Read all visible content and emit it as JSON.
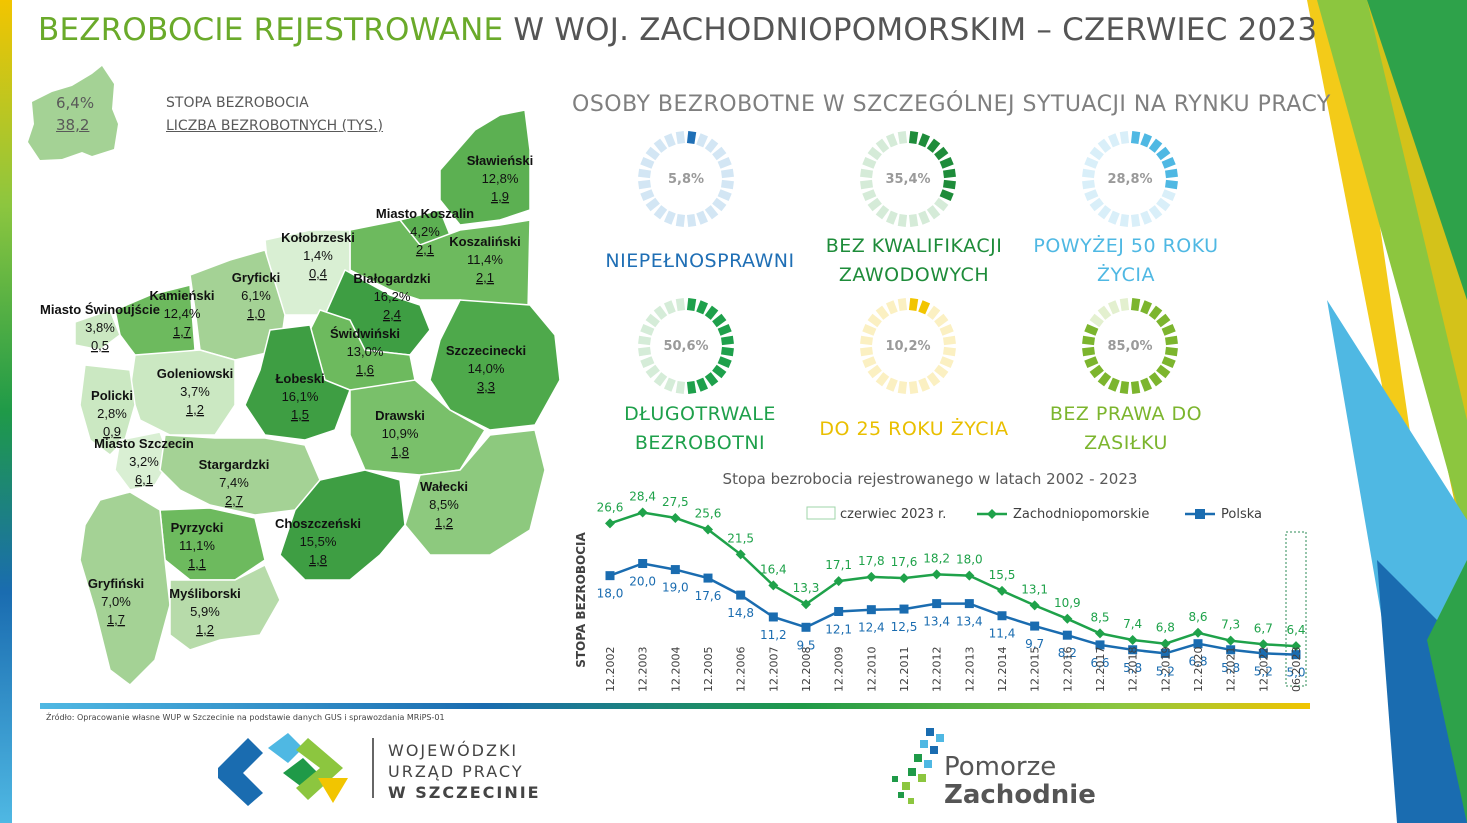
{
  "title": {
    "part1": "BEZROBOCIE REJESTROWANE",
    "part2": "W WOJ. ZACHODNIOPOMORSKIM – CZERWIEC 2023"
  },
  "legend": {
    "rate_value": "6,4%",
    "count_value": "38,2",
    "rate_label": "STOPA BEZROBOCIA",
    "count_label": "LICZBA BEZROBOTNYCH (TYS.)"
  },
  "map": {
    "counties": [
      {
        "name": "Sławieński",
        "rate": "12,8%",
        "count": "1,9",
        "shade": "#5cb052"
      },
      {
        "name": "Miasto Koszalin",
        "rate": "4,2%",
        "count": "2,1",
        "shade": "#5cb052"
      },
      {
        "name": "Koszaliński",
        "rate": "11,4%",
        "count": "2,1",
        "shade": "#6dba5e"
      },
      {
        "name": "Kołobrzeski",
        "rate": "1,4%",
        "count": "0,4",
        "shade": "#d9efd3"
      },
      {
        "name": "Gryficki",
        "rate": "6,1%",
        "count": "1,0",
        "shade": "#a4d295"
      },
      {
        "name": "Białogardzki",
        "rate": "16,2%",
        "count": "2,4",
        "shade": "#3e9e43"
      },
      {
        "name": "Kamieński",
        "rate": "12,4%",
        "count": "1,7",
        "shade": "#6dba5e"
      },
      {
        "name": "Miasto Świnoujście",
        "rate": "3,8%",
        "count": "0,5",
        "shade": "#cbe8c2"
      },
      {
        "name": "Świdwiński",
        "rate": "13,0%",
        "count": "1,6",
        "shade": "#6dba5e"
      },
      {
        "name": "Szczecinecki",
        "rate": "14,0%",
        "count": "3,3",
        "shade": "#4ea94b"
      },
      {
        "name": "Goleniowski",
        "rate": "3,7%",
        "count": "1,2",
        "shade": "#cbe8c2"
      },
      {
        "name": "Łobeski",
        "rate": "16,1%",
        "count": "1,5",
        "shade": "#3e9e43"
      },
      {
        "name": "Policki",
        "rate": "2,8%",
        "count": "0,9",
        "shade": "#cbe8c2"
      },
      {
        "name": "Miasto Szczecin",
        "rate": "3,2%",
        "count": "6,1",
        "shade": "#d9efd3"
      },
      {
        "name": "Drawski",
        "rate": "10,9%",
        "count": "1,8",
        "shade": "#79c06a"
      },
      {
        "name": "Stargardzki",
        "rate": "7,4%",
        "count": "2,7",
        "shade": "#a4d295"
      },
      {
        "name": "Wałecki",
        "rate": "8,5%",
        "count": "1,2",
        "shade": "#8dc97e"
      },
      {
        "name": "Choszczeński",
        "rate": "15,5%",
        "count": "1,8",
        "shade": "#3e9e43"
      },
      {
        "name": "Pyrzycki",
        "rate": "11,1%",
        "count": "1,1",
        "shade": "#6dba5e"
      },
      {
        "name": "Gryfiński",
        "rate": "7,0%",
        "count": "1,7",
        "shade": "#a4d295"
      },
      {
        "name": "Myśliborski",
        "rate": "5,9%",
        "count": "1,2",
        "shade": "#b7dbaa"
      }
    ]
  },
  "special": {
    "title": "OSOBY BEZROBOTNE W SZCZEGÓLNEJ SYTUACJI NA RYNKU PRACY",
    "items": [
      {
        "label_lines": [
          "NIEPEŁNOSPRAWNI"
        ],
        "value": "5,8%",
        "percent": 5.8,
        "color": "#1f6fb5",
        "track": "#d3e6f4",
        "label_color": "#1f6fb5"
      },
      {
        "label_lines": [
          "BEZ KWALIFIKACJI",
          "ZAWODOWYCH"
        ],
        "value": "35,4%",
        "percent": 35.4,
        "color": "#1e8c3a",
        "track": "#d5ebd8",
        "label_color": "#1e8c3a"
      },
      {
        "label_lines": [
          "POWYŻEJ 50 ROKU",
          "ŻYCIA"
        ],
        "value": "28,8%",
        "percent": 28.8,
        "color": "#4fb8e3",
        "track": "#d9eff9",
        "label_color": "#4fb8e3"
      },
      {
        "label_lines": [
          "DŁUGOTRWALE",
          "BEZROBOTNI"
        ],
        "value": "50,6%",
        "percent": 50.6,
        "color": "#1ea04b",
        "track": "#d5ecd8",
        "label_color": "#1ea04b"
      },
      {
        "label_lines": [
          "DO 25 ROKU ŻYCIA"
        ],
        "value": "10,2%",
        "percent": 10.2,
        "color": "#f2c500",
        "track": "#fbf0c2",
        "label_color": "#e9bf00"
      },
      {
        "label_lines": [
          "BEZ PRAWA DO",
          "ZASIŁKU"
        ],
        "value": "85,0%",
        "percent": 85.0,
        "color": "#7cb52e",
        "track": "#e3f0cf",
        "label_color": "#7cb52e"
      }
    ]
  },
  "chart_data": {
    "type": "line",
    "title": "Stopa bezrobocia rejestrowanego w latach 2002 - 2023",
    "ylabel": "STOPA BEZROBOCIA",
    "xlabel": "",
    "categories": [
      "12.2002",
      "12.2003",
      "12.2004",
      "12.2005",
      "12.2006",
      "12.2007",
      "12.2008",
      "12.2009",
      "12.2010",
      "12.2011",
      "12.2012",
      "12.2013",
      "12.2014",
      "12.2015",
      "12.2016",
      "12.2017",
      "12.2018",
      "12.2019",
      "12.2020",
      "12.2021",
      "12.2022",
      "06.2023"
    ],
    "series": [
      {
        "name": "Zachodniopomorskie",
        "color": "#1fa24a",
        "marker": "diamond",
        "values": [
          26.6,
          28.4,
          27.5,
          25.6,
          21.5,
          16.4,
          13.3,
          17.1,
          17.8,
          17.6,
          18.2,
          18.0,
          15.5,
          13.1,
          10.9,
          8.5,
          7.4,
          6.8,
          8.6,
          7.3,
          6.7,
          6.4
        ],
        "labels": [
          "26,6",
          "28,4",
          "27,5",
          "25,6",
          "21,5",
          "16,4",
          "13,3",
          "17,1",
          "17,8",
          "17,6",
          "18,2",
          "18,0",
          "15,5",
          "13,1",
          "10,9",
          "8,5",
          "7,4",
          "6,8",
          "8,6",
          "7,3",
          "6,7",
          "6,4"
        ]
      },
      {
        "name": "Polska",
        "color": "#1a6cb0",
        "marker": "square",
        "values": [
          18.0,
          20.0,
          19.0,
          17.6,
          14.8,
          11.2,
          9.5,
          12.1,
          12.4,
          12.5,
          13.4,
          13.4,
          11.4,
          9.7,
          8.2,
          6.6,
          5.8,
          5.2,
          6.8,
          5.8,
          5.2,
          5.0
        ],
        "labels": [
          "18,0",
          "20,0",
          "19,0",
          "17,6",
          "14,8",
          "11,2",
          "9,5",
          "12,1",
          "12,4",
          "12,5",
          "13,4",
          "13,4",
          "11,4",
          "9,7",
          "8,2",
          "6,6",
          "5,8",
          "5,2",
          "6,8",
          "5,8",
          "5,2",
          "5,0"
        ]
      }
    ],
    "highlight_legend": "czerwiec 2023 r.",
    "highlight_category": "06.2023",
    "ylim": [
      0,
      30
    ],
    "grid": false,
    "legend_position": "top"
  },
  "footer": {
    "source": "Źródło: Opracowanie własne WUP w Szczecinie na podstawie danych GUS i sprawozdania MRiPS-01",
    "wup_lines": [
      "WOJEWÓDZKI",
      "URZĄD PRACY",
      "W  SZCZECINIE"
    ],
    "pz_lines": [
      "Pomorze",
      "Zachodnie"
    ]
  }
}
